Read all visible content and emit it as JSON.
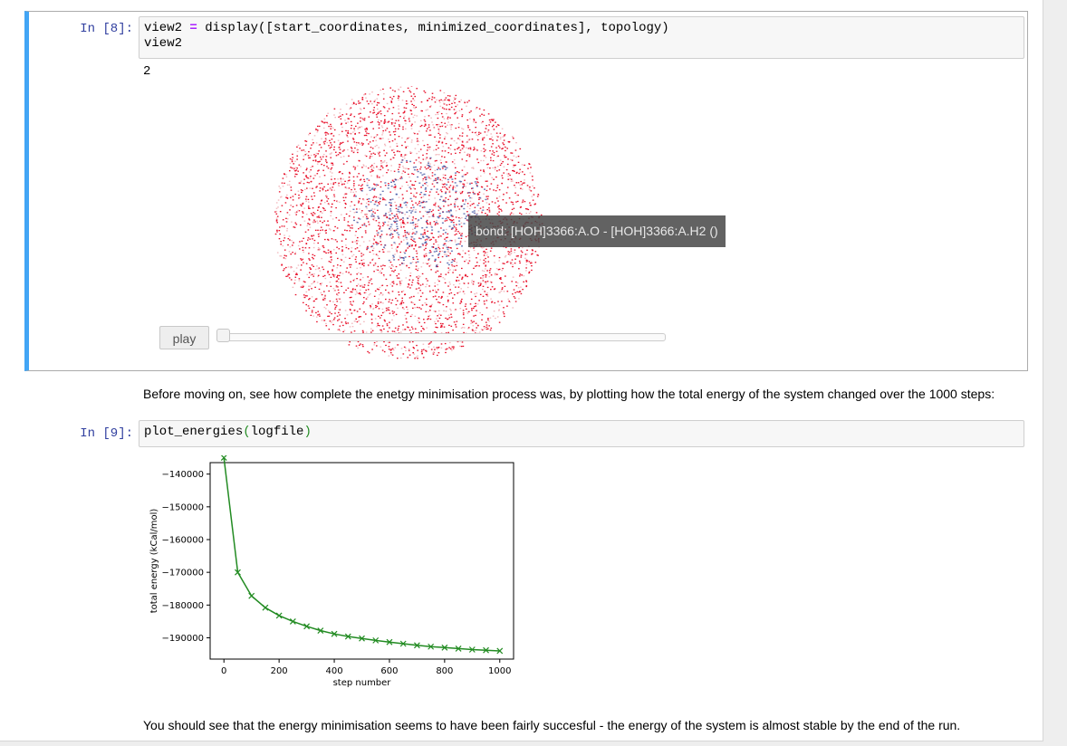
{
  "cells": {
    "cell8": {
      "prompt": "In [8]:",
      "code_line1_a": "view2 ",
      "code_line1_op": "=",
      "code_line1_b": " display([start_coordinates, minimized_coordinates], topology)",
      "code_line2": "view2",
      "output": "2",
      "tooltip": "bond: [HOH]3366:A.O - [HOH]3366:A.H2 ()",
      "play_label": "play",
      "slider_value": 0
    },
    "markdown1": "Before moving on, see how complete the enetgy minimisation process was, by plotting how the total energy of the system changed over the 1000 steps:",
    "cell9": {
      "prompt": "In [9]:",
      "code_func": "plot_energies",
      "code_open": "(",
      "code_arg": "logfile",
      "code_close": ")"
    },
    "markdown2": "You should see that the energy minimisation seems to have been fairly succesful - the energy of the system is almost stable by the end of the run."
  },
  "colors": {
    "accent": "#42a5f5",
    "prompt": "#303f9f",
    "line": "#228b22",
    "atom_red": "#e8102a",
    "atom_blue": "#3a4fa0"
  },
  "chart_data": {
    "type": "line",
    "xlabel": "step number",
    "ylabel": "total energy (kCal/mol)",
    "xlim": [
      -50,
      1050
    ],
    "ylim": [
      -196500,
      -136500
    ],
    "xticks": [
      0,
      200,
      400,
      600,
      800,
      1000
    ],
    "yticks": [
      -140000,
      -150000,
      -160000,
      -170000,
      -180000,
      -190000
    ],
    "marker": "x",
    "series": [
      {
        "x": [
          0,
          50,
          100,
          150,
          200,
          250,
          300,
          350,
          400,
          450,
          500,
          550,
          600,
          650,
          700,
          750,
          800,
          850,
          900,
          950,
          1000
        ],
        "values": [
          -135000,
          -170000,
          -177200,
          -180800,
          -183200,
          -185000,
          -186500,
          -187800,
          -188800,
          -189600,
          -190200,
          -190800,
          -191300,
          -191800,
          -192300,
          -192700,
          -193000,
          -193300,
          -193600,
          -193800,
          -194000
        ]
      }
    ]
  }
}
